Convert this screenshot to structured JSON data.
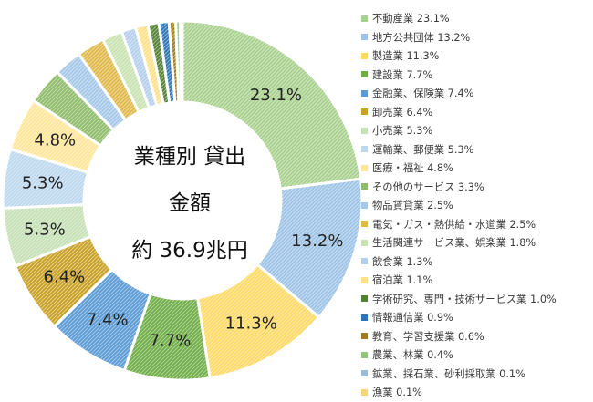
{
  "chart_data": {
    "type": "pie",
    "title": "業種別 貸出金額",
    "center": {
      "line1": "業種別 貸出",
      "line2": "金額",
      "line3": "約 36.9兆円"
    },
    "unit": "%",
    "legend_position": "right",
    "categories": [
      "不動産業",
      "地方公共団体",
      "製造業",
      "建設業",
      "金融業、保険業",
      "卸売業",
      "小売業",
      "運輸業、郵便業",
      "医療・福祉",
      "その他のサービス",
      "物品賃貸業",
      "電気・ガス・熱供給・水道業",
      "生活関連サービス業、娯楽業",
      "飲食業",
      "宿泊業",
      "学術研究、専門・技術サービス業",
      "情報通信業",
      "教育、学習支援業",
      "農業、林業",
      "鉱業、採石業、砂利採取業",
      "漁業"
    ],
    "values": [
      23.1,
      13.2,
      11.3,
      7.7,
      7.4,
      6.4,
      5.3,
      5.3,
      4.8,
      3.3,
      2.5,
      2.5,
      1.8,
      1.3,
      1.1,
      1.0,
      0.9,
      0.6,
      0.4,
      0.1,
      0.1
    ],
    "legend_labels": [
      "不動産業 23.1%",
      "地方公共団体 13.2%",
      "製造業 11.3%",
      "建設業 7.7%",
      "金融業、保険業 7.4%",
      "卸売業 6.4%",
      "小売業 5.3%",
      "運輸業、郵便業 5.3%",
      "医療・福祉 4.8%",
      "その他のサービス 3.3%",
      "物品賃貸業 2.5%",
      "電気・ガス・熱供給・水道業 2.5%",
      "生活関連サービス業、娯楽業 1.8%",
      "飲食業 1.3%",
      "宿泊業 1.1%",
      "学術研究、専門・技術サービス業 1.0%",
      "情報通信業 0.9%",
      "教育、学習支援業 0.6%",
      "農業、林業 0.4%",
      "鉱業、採石業、砂利採取業 0.1%",
      "漁業 0.1%"
    ],
    "data_labels": [
      "23.1%",
      "13.2%",
      "11.3%",
      "7.7%",
      "7.4%",
      "6.4%",
      "5.3%",
      "5.3%",
      "4.8%",
      "",
      "",
      "",
      "",
      "",
      "",
      "",
      "",
      "",
      "",
      "",
      ""
    ],
    "colors": [
      "#a9d18e",
      "#9dc3e6",
      "#ffd966",
      "#70ad47",
      "#5b9bd5",
      "#c9a227",
      "#c5e0b4",
      "#bdd7ee",
      "#ffe699",
      "#8fbc6a",
      "#a5c8e8",
      "#e0b84a",
      "#c8e2b0",
      "#b4cfec",
      "#ffe08a",
      "#548235",
      "#2e75b6",
      "#a07c1a",
      "#93c47d",
      "#9bbbd9",
      "#f4d67a"
    ]
  }
}
